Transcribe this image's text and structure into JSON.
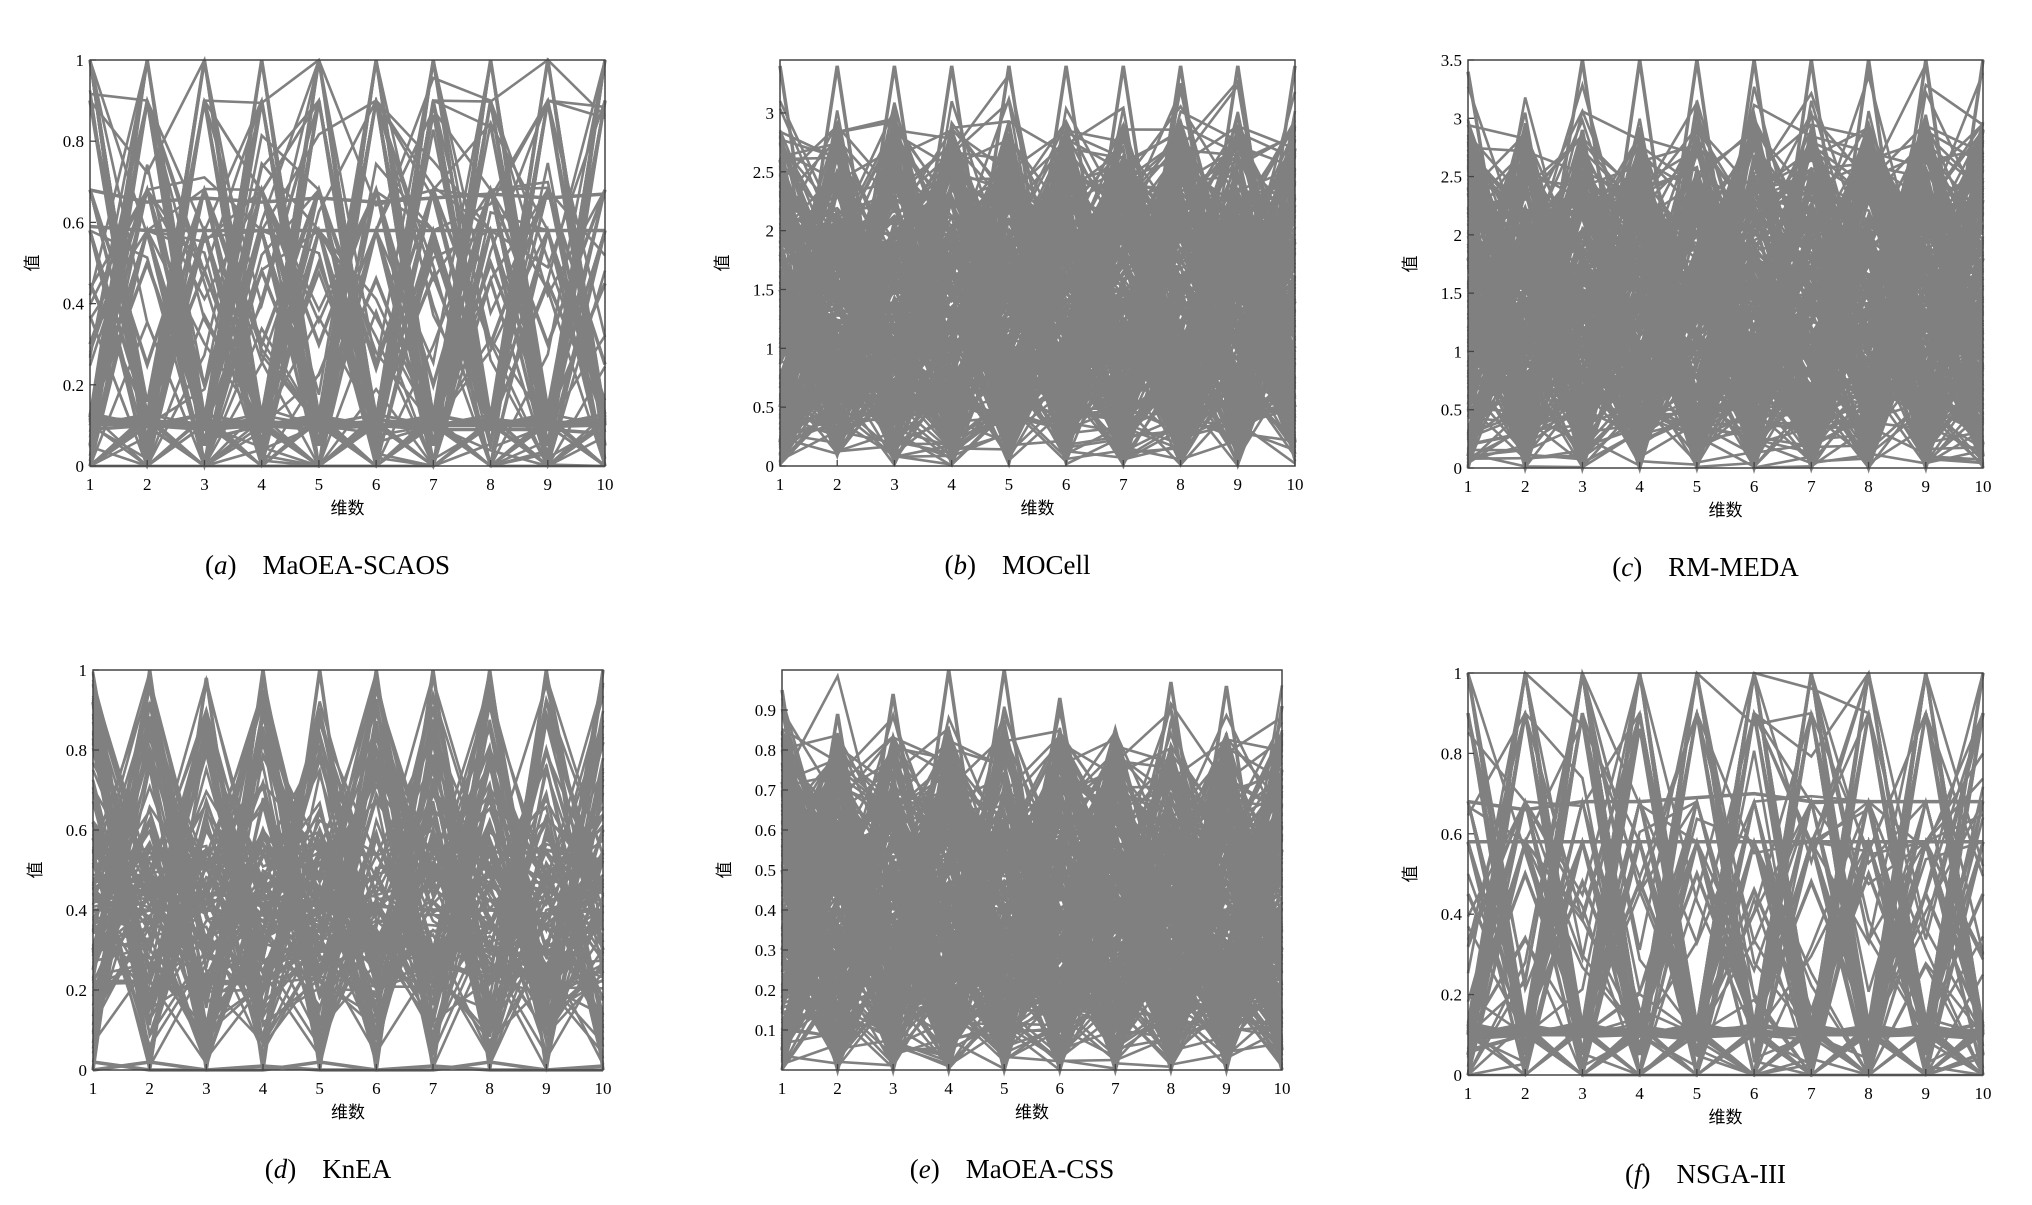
{
  "figure": {
    "xlabel": "维数",
    "ylabel": "值",
    "line_color": "#808080"
  },
  "chart_data": [
    {
      "type": "line",
      "caption_letter": "a",
      "caption_name": "MaOEA-SCAOS",
      "xlabel": "维数",
      "ylabel": "值",
      "xlim": [
        1,
        10
      ],
      "ylim": [
        0,
        1
      ],
      "x": [
        1,
        2,
        3,
        4,
        5,
        6,
        7,
        8,
        9,
        10
      ],
      "yticks": [
        "0",
        "0.2",
        "0.4",
        "0.6",
        "0.8",
        "1"
      ],
      "ytick_values": [
        0,
        0.2,
        0.4,
        0.6,
        0.8,
        1
      ],
      "series": [
        {
          "values": [
            0.68,
            0.65,
            0.66,
            0.65,
            0.66,
            0.65,
            0.66,
            0.67,
            0.66,
            0.67
          ]
        },
        {
          "values": [
            0.59,
            0.58,
            0.58,
            0.58,
            0.58,
            0.58,
            0.58,
            0.58,
            0.58,
            0.58
          ]
        },
        {
          "values": [
            0.12,
            0.11,
            0.1,
            0.11,
            0.1,
            0.1,
            0.1,
            0.1,
            0.1,
            0.11
          ]
        },
        {
          "values": [
            0.09,
            0.1,
            0.09,
            0.1,
            0.09,
            0.1,
            0.09,
            0.09,
            0.09,
            0.08
          ]
        },
        {
          "values": [
            0.12,
            1.0,
            0.1,
            1.0,
            0.1,
            1.0,
            0.1,
            1.0,
            0.1,
            1.0
          ]
        },
        {
          "values": [
            1.0,
            0.1,
            1.0,
            0.1,
            1.0,
            0.1,
            1.0,
            0.1,
            1.0,
            0.1
          ]
        },
        {
          "values": [
            0.9,
            0.05,
            0.9,
            0.05,
            0.9,
            0.05,
            0.9,
            0.05,
            0.9,
            0.05
          ]
        },
        {
          "values": [
            0.05,
            0.9,
            0.05,
            0.9,
            0.05,
            0.9,
            0.05,
            0.9,
            0.05,
            0.9
          ]
        },
        {
          "values": [
            0.0,
            0.58,
            0.0,
            0.58,
            0.0,
            0.58,
            0.0,
            0.58,
            0.0,
            0.58
          ]
        },
        {
          "values": [
            0.58,
            0.0,
            0.58,
            0.0,
            0.58,
            0.0,
            0.58,
            0.0,
            0.58,
            0.0
          ]
        },
        {
          "values": [
            0.45,
            0.12,
            0.48,
            0.1,
            0.5,
            0.12,
            0.47,
            0.1,
            0.45,
            0.12
          ]
        },
        {
          "values": [
            0.12,
            0.5,
            0.1,
            0.48,
            0.12,
            0.46,
            0.1,
            0.5,
            0.12,
            0.45
          ]
        },
        {
          "values": [
            0.3,
            0.68,
            0.2,
            0.68,
            0.3,
            0.68,
            0.2,
            0.68,
            0.3,
            0.68
          ]
        },
        {
          "values": [
            0.68,
            0.25,
            0.68,
            0.3,
            0.68,
            0.25,
            0.68,
            0.3,
            0.68,
            0.25
          ]
        }
      ]
    },
    {
      "type": "line",
      "caption_letter": "b",
      "caption_name": "MOCell",
      "xlabel": "维数",
      "ylabel": "值",
      "xlim": [
        1,
        10
      ],
      "ylim": [
        0,
        3.45
      ],
      "x": [
        1,
        2,
        3,
        4,
        5,
        6,
        7,
        8,
        9,
        10
      ],
      "yticks": [
        "0",
        "0.5",
        "1",
        "1.5",
        "2",
        "2.5",
        "3"
      ],
      "ytick_values": [
        0,
        0.5,
        1,
        1.5,
        2,
        2.5,
        3
      ],
      "series": [
        {
          "values": [
            3.4,
            0.2,
            3.4,
            0.2,
            3.4,
            0.2,
            3.4,
            0.2,
            3.4,
            0.2
          ]
        },
        {
          "values": [
            0.2,
            3.4,
            0.2,
            3.4,
            0.2,
            3.4,
            0.2,
            3.4,
            0.2,
            3.4
          ]
        },
        {
          "values": [
            2.6,
            0.5,
            2.8,
            0.4,
            2.7,
            0.5,
            2.9,
            0.4,
            2.6,
            0.5
          ]
        },
        {
          "values": [
            0.5,
            2.7,
            0.4,
            2.8,
            0.5,
            2.6,
            0.4,
            2.9,
            0.5,
            2.7
          ]
        },
        {
          "values": [
            1.8,
            1.0,
            2.0,
            0.8,
            1.9,
            1.1,
            1.7,
            0.9,
            2.0,
            1.0
          ]
        },
        {
          "values": [
            1.0,
            1.9,
            0.8,
            2.0,
            1.0,
            1.8,
            0.9,
            2.1,
            1.0,
            1.9
          ]
        },
        {
          "values": [
            1.2,
            1.5,
            1.3,
            1.6,
            1.2,
            1.4,
            1.5,
            1.3,
            1.6,
            1.2
          ]
        },
        {
          "values": [
            0.6,
            0.3,
            0.7,
            0.2,
            0.6,
            0.4,
            0.5,
            0.3,
            0.7,
            0.2
          ]
        },
        {
          "values": [
            0.3,
            0.8,
            0.2,
            0.7,
            0.3,
            0.9,
            0.2,
            0.8,
            0.3,
            0.6
          ]
        },
        {
          "values": [
            2.2,
            1.6,
            2.1,
            1.7,
            2.3,
            1.5,
            2.2,
            1.6,
            2.1,
            1.8
          ]
        },
        {
          "values": [
            0.1,
            1.2,
            0.1,
            1.3,
            0.1,
            1.1,
            0.1,
            1.2,
            0.1,
            1.4
          ]
        },
        {
          "values": [
            1.5,
            0.1,
            1.4,
            0.1,
            1.6,
            0.1,
            1.5,
            0.1,
            1.3,
            0.1
          ]
        }
      ]
    },
    {
      "type": "line",
      "caption_letter": "c",
      "caption_name": "RM-MEDA",
      "xlabel": "维数",
      "ylabel": "值",
      "xlim": [
        1,
        10
      ],
      "ylim": [
        0,
        3.5
      ],
      "x": [
        1,
        2,
        3,
        4,
        5,
        6,
        7,
        8,
        9,
        10
      ],
      "yticks": [
        "0",
        "0.5",
        "1",
        "1.5",
        "2",
        "2.5",
        "3",
        "3.5"
      ],
      "ytick_values": [
        0,
        0.5,
        1,
        1.5,
        2,
        2.5,
        3,
        3.5
      ],
      "series": [
        {
          "values": [
            3.4,
            0.5,
            3.5,
            0.1,
            3.5,
            0.1,
            3.5,
            0.1,
            3.5,
            0.1
          ]
        },
        {
          "values": [
            0.1,
            2.1,
            0.1,
            3.5,
            0.1,
            3.5,
            0.1,
            3.5,
            0.1,
            3.5
          ]
        },
        {
          "values": [
            1.5,
            1.7,
            0.2,
            2.8,
            0.2,
            2.9,
            0.2,
            2.8,
            0.2,
            2.9
          ]
        },
        {
          "values": [
            0.2,
            0.3,
            2.9,
            0.2,
            2.8,
            0.2,
            2.9,
            0.2,
            2.8,
            0.2
          ]
        },
        {
          "values": [
            1.3,
            1.0,
            1.6,
            1.2,
            1.5,
            1.0,
            1.7,
            1.3,
            1.6,
            1.5
          ]
        },
        {
          "values": [
            0.5,
            0.8,
            0.4,
            0.9,
            0.5,
            0.8,
            0.4,
            0.9,
            0.5,
            0.8
          ]
        },
        {
          "values": [
            0.0,
            1.9,
            0.0,
            1.5,
            0.0,
            1.6,
            0.0,
            1.4,
            0.0,
            1.8
          ]
        },
        {
          "values": [
            1.8,
            0.0,
            1.5,
            0.0,
            1.7,
            0.0,
            1.5,
            0.0,
            1.6,
            0.0
          ]
        },
        {
          "values": [
            0.8,
            0.2,
            1.0,
            0.3,
            1.1,
            0.2,
            0.9,
            0.3,
            1.0,
            2.3
          ]
        }
      ]
    },
    {
      "type": "line",
      "caption_letter": "d",
      "caption_name": "KnEA",
      "xlabel": "维数",
      "ylabel": "值",
      "xlim": [
        1,
        10
      ],
      "ylim": [
        0,
        1
      ],
      "x": [
        1,
        2,
        3,
        4,
        5,
        6,
        7,
        8,
        9,
        10
      ],
      "yticks": [
        "0",
        "0.2",
        "0.4",
        "0.6",
        "0.8",
        "1"
      ],
      "ytick_values": [
        0,
        0.2,
        0.4,
        0.6,
        0.8,
        1
      ],
      "series": [
        {
          "values": [
            0.92,
            0.0,
            0.98,
            0.0,
            1.0,
            0.0,
            1.0,
            0.0,
            1.0,
            0.0
          ]
        },
        {
          "values": [
            0.0,
            1.0,
            0.0,
            1.0,
            0.0,
            1.0,
            0.0,
            1.0,
            0.0,
            1.0
          ]
        },
        {
          "values": [
            0.62,
            0.3,
            0.8,
            0.3,
            0.78,
            0.3,
            0.76,
            0.3,
            0.8,
            0.3
          ]
        },
        {
          "values": [
            0.3,
            0.8,
            0.3,
            0.82,
            0.3,
            0.8,
            0.3,
            0.78,
            0.3,
            0.82
          ]
        },
        {
          "values": [
            0.42,
            0.45,
            0.44,
            0.43,
            0.42,
            0.41,
            0.4,
            0.4,
            0.39,
            0.4
          ]
        },
        {
          "values": [
            0.4,
            0.4,
            0.4,
            0.39,
            0.4,
            0.41,
            0.4,
            0.4,
            0.42,
            0.47
          ]
        },
        {
          "values": [
            0.02,
            0.0,
            0.0,
            0.01,
            0.0,
            0.0,
            0.01,
            0.0,
            0.0,
            0.01
          ]
        },
        {
          "values": [
            0.0,
            0.02,
            0.0,
            0.0,
            0.02,
            0.0,
            0.0,
            0.02,
            0.0,
            0.0
          ]
        },
        {
          "values": [
            0.58,
            0.22,
            0.62,
            0.2,
            0.6,
            0.25,
            0.58,
            0.22,
            0.55,
            0.52
          ]
        },
        {
          "values": [
            0.25,
            0.62,
            0.2,
            0.6,
            0.25,
            0.58,
            0.22,
            0.62,
            0.2,
            0.6
          ]
        }
      ]
    },
    {
      "type": "line",
      "caption_letter": "e",
      "caption_name": "MaOEA-CSS",
      "xlabel": "维数",
      "ylabel": "值",
      "xlim": [
        1,
        10
      ],
      "ylim": [
        0,
        1.0
      ],
      "x": [
        1,
        2,
        3,
        4,
        5,
        6,
        7,
        8,
        9,
        10
      ],
      "yticks": [
        "0.1",
        "0.2",
        "0.3",
        "0.4",
        "0.5",
        "0.6",
        "0.7",
        "0.8",
        "0.9"
      ],
      "ytick_values": [
        0.1,
        0.2,
        0.3,
        0.4,
        0.5,
        0.6,
        0.7,
        0.8,
        0.9
      ],
      "series": [
        {
          "values": [
            0.95,
            0.05,
            0.94,
            0.05,
            1.0,
            0.05,
            0.82,
            0.05,
            0.96,
            0.05
          ]
        },
        {
          "values": [
            0.05,
            0.89,
            0.05,
            1.0,
            0.05,
            0.93,
            0.05,
            0.97,
            0.05,
            0.91
          ]
        },
        {
          "values": [
            0.72,
            0.3,
            0.8,
            0.25,
            0.86,
            0.3,
            0.7,
            0.3,
            0.78,
            0.3
          ]
        },
        {
          "values": [
            0.3,
            0.75,
            0.3,
            0.85,
            0.3,
            0.8,
            0.3,
            0.8,
            0.3,
            0.75
          ]
        },
        {
          "values": [
            0.6,
            0.55,
            0.62,
            0.5,
            0.58,
            0.55,
            0.6,
            0.52,
            0.58,
            0.62
          ]
        },
        {
          "values": [
            0.4,
            0.45,
            0.38,
            0.42,
            0.4,
            0.35,
            0.42,
            0.38,
            0.4,
            0.44
          ]
        },
        {
          "values": [
            0.2,
            0.15,
            0.22,
            0.12,
            0.2,
            0.18,
            0.15,
            0.2,
            0.12,
            0.18
          ]
        },
        {
          "values": [
            0.0,
            0.5,
            0.0,
            0.55,
            0.0,
            0.48,
            0.0,
            0.52,
            0.0,
            0.55
          ]
        },
        {
          "values": [
            0.5,
            0.0,
            0.52,
            0.0,
            0.55,
            0.0,
            0.5,
            0.0,
            0.52,
            0.0
          ]
        }
      ]
    },
    {
      "type": "line",
      "caption_letter": "f",
      "caption_name": "NSGA-III",
      "xlabel": "维数",
      "ylabel": "值",
      "xlim": [
        1,
        10
      ],
      "ylim": [
        0,
        1
      ],
      "x": [
        1,
        2,
        3,
        4,
        5,
        6,
        7,
        8,
        9,
        10
      ],
      "yticks": [
        "0",
        "0.2",
        "0.4",
        "0.6",
        "0.8",
        "1"
      ],
      "ytick_values": [
        0,
        0.2,
        0.4,
        0.6,
        0.8,
        1
      ],
      "series": [
        {
          "values": [
            0.68,
            0.66,
            0.68,
            0.68,
            0.69,
            0.7,
            0.68,
            0.68,
            0.68,
            0.68
          ]
        },
        {
          "values": [
            0.58,
            0.58,
            0.58,
            0.58,
            0.58,
            0.58,
            0.58,
            0.58,
            0.58,
            0.58
          ]
        },
        {
          "values": [
            0.11,
            0.11,
            0.12,
            0.11,
            0.11,
            0.12,
            0.11,
            0.11,
            0.11,
            0.1
          ]
        },
        {
          "values": [
            0.09,
            0.1,
            0.1,
            0.1,
            0.1,
            0.11,
            0.1,
            0.1,
            0.1,
            0.09
          ]
        },
        {
          "values": [
            0.1,
            1.0,
            0.1,
            1.0,
            0.1,
            1.0,
            0.1,
            1.0,
            0.1,
            1.0
          ]
        },
        {
          "values": [
            1.0,
            0.1,
            1.0,
            0.1,
            1.0,
            0.1,
            1.0,
            0.1,
            1.0,
            0.1
          ]
        },
        {
          "values": [
            0.9,
            0.05,
            0.9,
            0.05,
            0.9,
            0.05,
            0.9,
            0.05,
            0.9,
            0.05
          ]
        },
        {
          "values": [
            0.05,
            0.9,
            0.05,
            0.9,
            0.05,
            0.9,
            0.05,
            0.9,
            0.05,
            0.9
          ]
        },
        {
          "values": [
            0.0,
            0.58,
            0.0,
            0.58,
            0.0,
            0.58,
            0.0,
            0.58,
            0.0,
            0.58
          ]
        },
        {
          "values": [
            0.58,
            0.0,
            0.58,
            0.0,
            0.58,
            0.0,
            0.58,
            0.0,
            0.58,
            0.0
          ]
        },
        {
          "values": [
            0.45,
            0.12,
            0.48,
            0.12,
            0.5,
            0.12,
            0.48,
            0.12,
            0.45,
            0.12
          ]
        },
        {
          "values": [
            0.12,
            0.5,
            0.12,
            0.48,
            0.12,
            0.46,
            0.12,
            0.5,
            0.12,
            0.45
          ]
        }
      ]
    }
  ]
}
